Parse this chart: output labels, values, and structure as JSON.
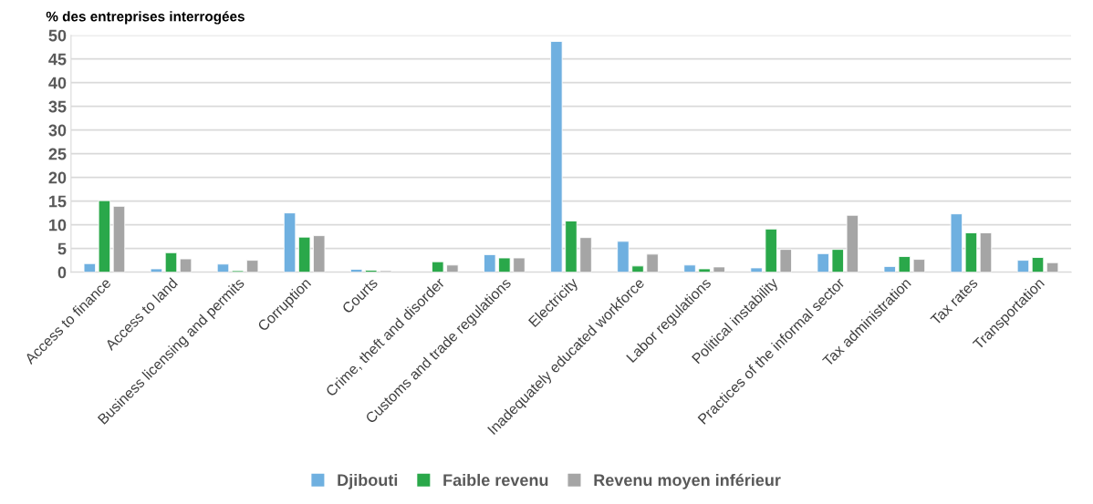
{
  "chart_data": {
    "type": "bar",
    "ylabel": "% des entreprises interrogées",
    "categories": [
      "Access to finance",
      "Access to land",
      "Business licensing and permits",
      "Corruption",
      "Courts",
      "Crime, theft and disorder",
      "Customs and trade regulations",
      "Electricity",
      "Inadequately educated workforce",
      "Labor regulations",
      "Political instability",
      "Practices of the informal sector",
      "Tax administration",
      "Tax rates",
      "Transportation"
    ],
    "series": [
      {
        "name": "Djibouti",
        "color": "#6fb0e0",
        "values": [
          1.8,
          0.7,
          1.7,
          12.5,
          0.6,
          null,
          3.7,
          48.7,
          6.5,
          1.5,
          0.9,
          3.9,
          1.2,
          12.3,
          2.5
        ]
      },
      {
        "name": "Faible revenu",
        "color": "#2aa84a",
        "values": [
          15.1,
          4.1,
          0.3,
          7.4,
          0.4,
          2.2,
          3.0,
          10.8,
          1.3,
          0.7,
          9.1,
          4.8,
          3.3,
          8.3,
          3.1
        ]
      },
      {
        "name": "Revenu moyen inférieur",
        "color": "#a5a5a5",
        "values": [
          13.9,
          2.8,
          2.5,
          7.7,
          0.3,
          1.5,
          3.0,
          7.3,
          3.8,
          1.1,
          4.8,
          12.0,
          2.7,
          8.3,
          2.0
        ]
      }
    ],
    "ylim": [
      0,
      50
    ],
    "yticks": [
      0,
      5,
      10,
      15,
      20,
      25,
      30,
      35,
      40,
      45,
      50
    ],
    "grid": "y",
    "legend": "bottom"
  }
}
